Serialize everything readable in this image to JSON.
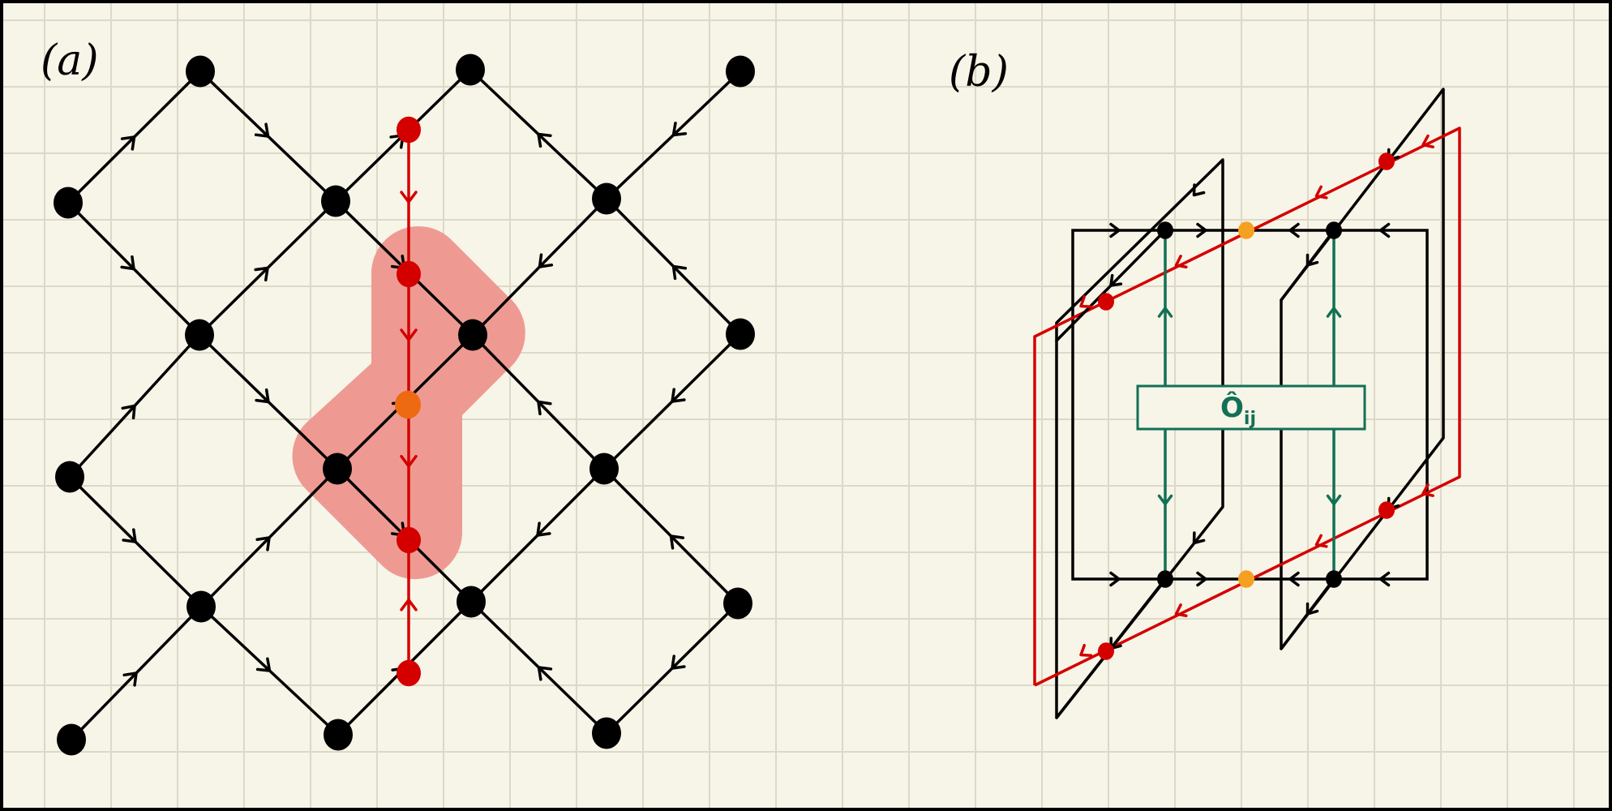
{
  "panels": {
    "a": {
      "label": "(a)"
    },
    "b": {
      "label": "(b)",
      "operator_label": "Ô",
      "operator_subscript": "ij"
    }
  },
  "colors": {
    "background": "#f7f4e8",
    "grid": "#dcd9c8",
    "lattice": "#000000",
    "string": "#d40000",
    "highlight": "#ee9a92",
    "junction": "#ee6a12",
    "junction_b": "#f5a020",
    "operator": "#127055"
  }
}
